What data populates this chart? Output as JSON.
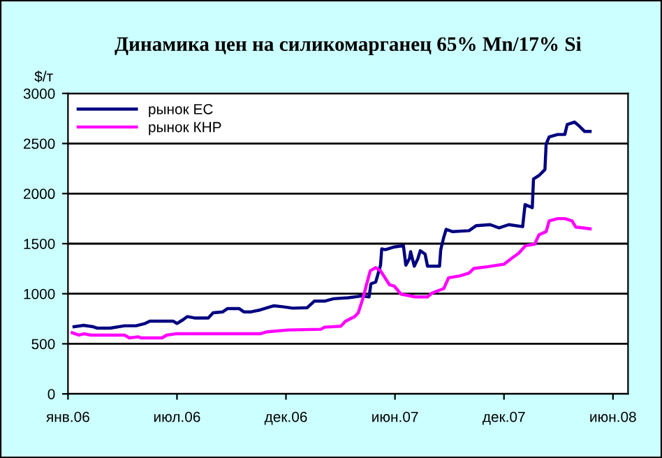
{
  "chart_data": {
    "type": "line",
    "title": "Динамика цен на силикомарганец 65% Mn/17% Si",
    "ylabel": "$/т",
    "ylim": [
      0,
      3000
    ],
    "yticks": [
      0,
      500,
      1000,
      1500,
      2000,
      2500,
      3000
    ],
    "xlim": [
      "2006-01-01",
      "2008-07-19"
    ],
    "xticks": [
      {
        "value": "2006-01-01",
        "label": "янв.06"
      },
      {
        "value": "2006-07-01",
        "label": "июл.06"
      },
      {
        "value": "2006-12-29",
        "label": "дек.06"
      },
      {
        "value": "2007-06-28",
        "label": "июн.07"
      },
      {
        "value": "2007-12-26",
        "label": "дек.07"
      },
      {
        "value": "2008-06-24",
        "label": "июн.08"
      }
    ],
    "grid": "y",
    "legend": "top left",
    "series": [
      {
        "name": "рынок ЕС",
        "color": "#000080",
        "x": [
          "2006-01-11",
          "2006-01-27",
          "2006-02-12",
          "2006-02-19",
          "2006-03-12",
          "2006-04-05",
          "2006-04-24",
          "2006-05-09",
          "2006-05-17",
          "2006-06-25",
          "2006-07-01",
          "2006-07-11",
          "2006-07-18",
          "2006-07-30",
          "2006-08-22",
          "2006-08-30",
          "2006-09-15",
          "2006-09-23",
          "2006-10-12",
          "2006-10-20",
          "2006-11-01",
          "2006-11-16",
          "2006-12-09",
          "2006-12-24",
          "2007-01-09",
          "2007-02-02",
          "2007-02-14",
          "2007-03-03",
          "2007-03-18",
          "2007-04-11",
          "2007-05-04",
          "2007-05-16",
          "2007-05-19",
          "2007-05-27",
          "2007-06-04",
          "2007-06-06",
          "2007-06-12",
          "2007-06-27",
          "2007-07-12",
          "2007-07-16",
          "2007-07-22",
          "2007-07-24",
          "2007-07-30",
          "2007-08-05",
          "2007-08-09",
          "2007-08-17",
          "2007-08-21",
          "2007-09-10",
          "2007-09-12",
          "2007-09-17",
          "2007-09-21",
          "2007-10-02",
          "2007-10-29",
          "2007-11-10",
          "2007-12-03",
          "2007-12-18",
          "2008-01-03",
          "2008-01-26",
          "2008-01-30",
          "2008-02-11",
          "2008-02-13",
          "2008-02-22",
          "2008-03-03",
          "2008-03-05",
          "2008-03-10",
          "2008-03-24",
          "2008-04-05",
          "2008-04-09",
          "2008-04-21",
          "2008-04-28",
          "2008-05-08",
          "2008-05-17"
        ],
        "values": [
          670,
          684,
          670,
          656,
          656,
          680,
          680,
          703,
          726,
          726,
          703,
          740,
          772,
          758,
          758,
          810,
          819,
          852,
          852,
          819,
          819,
          838,
          880,
          870,
          856,
          860,
          926,
          926,
          950,
          960,
          978,
          968,
          1099,
          1117,
          1285,
          1448,
          1440,
          1467,
          1480,
          1285,
          1350,
          1420,
          1275,
          1350,
          1430,
          1395,
          1275,
          1275,
          1440,
          1564,
          1643,
          1620,
          1630,
          1680,
          1690,
          1657,
          1690,
          1670,
          1890,
          1860,
          2146,
          2180,
          2240,
          2495,
          2565,
          2590,
          2590,
          2690,
          2714,
          2680,
          2620,
          2620
        ]
      },
      {
        "name": "рынок КНР",
        "color": "#ff00ff",
        "x": [
          "2006-01-08",
          "2006-01-19",
          "2006-01-28",
          "2006-02-08",
          "2006-04-05",
          "2006-04-13",
          "2006-04-28",
          "2006-05-02",
          "2006-06-06",
          "2006-06-14",
          "2006-06-29",
          "2006-11-16",
          "2006-11-28",
          "2007-01-02",
          "2007-02-25",
          "2007-03-03",
          "2007-03-30",
          "2007-04-07",
          "2007-04-22",
          "2007-04-28",
          "2007-05-06",
          "2007-05-12",
          "2007-05-18",
          "2007-05-27",
          "2007-06-04",
          "2007-06-19",
          "2007-06-27",
          "2007-07-08",
          "2007-08-01",
          "2007-08-21",
          "2007-08-28",
          "2007-09-17",
          "2007-09-25",
          "2007-10-14",
          "2007-10-29",
          "2007-11-06",
          "2007-11-30",
          "2007-12-26",
          "2008-01-08",
          "2008-01-19",
          "2008-01-31",
          "2008-02-15",
          "2008-02-22",
          "2008-03-05",
          "2008-03-10",
          "2008-03-24",
          "2008-04-05",
          "2008-04-17",
          "2008-04-23",
          "2008-05-06",
          "2008-05-17"
        ],
        "values": [
          610,
          587,
          600,
          587,
          587,
          559,
          570,
          559,
          559,
          587,
          600,
          600,
          620,
          638,
          645,
          666,
          675,
          726,
          772,
          810,
          959,
          1099,
          1229,
          1261,
          1229,
          1089,
          1075,
          996,
          968,
          968,
          1005,
          1052,
          1159,
          1178,
          1206,
          1253,
          1271,
          1295,
          1355,
          1402,
          1480,
          1495,
          1588,
          1620,
          1727,
          1750,
          1750,
          1727,
          1666,
          1657,
          1648
        ]
      }
    ]
  }
}
